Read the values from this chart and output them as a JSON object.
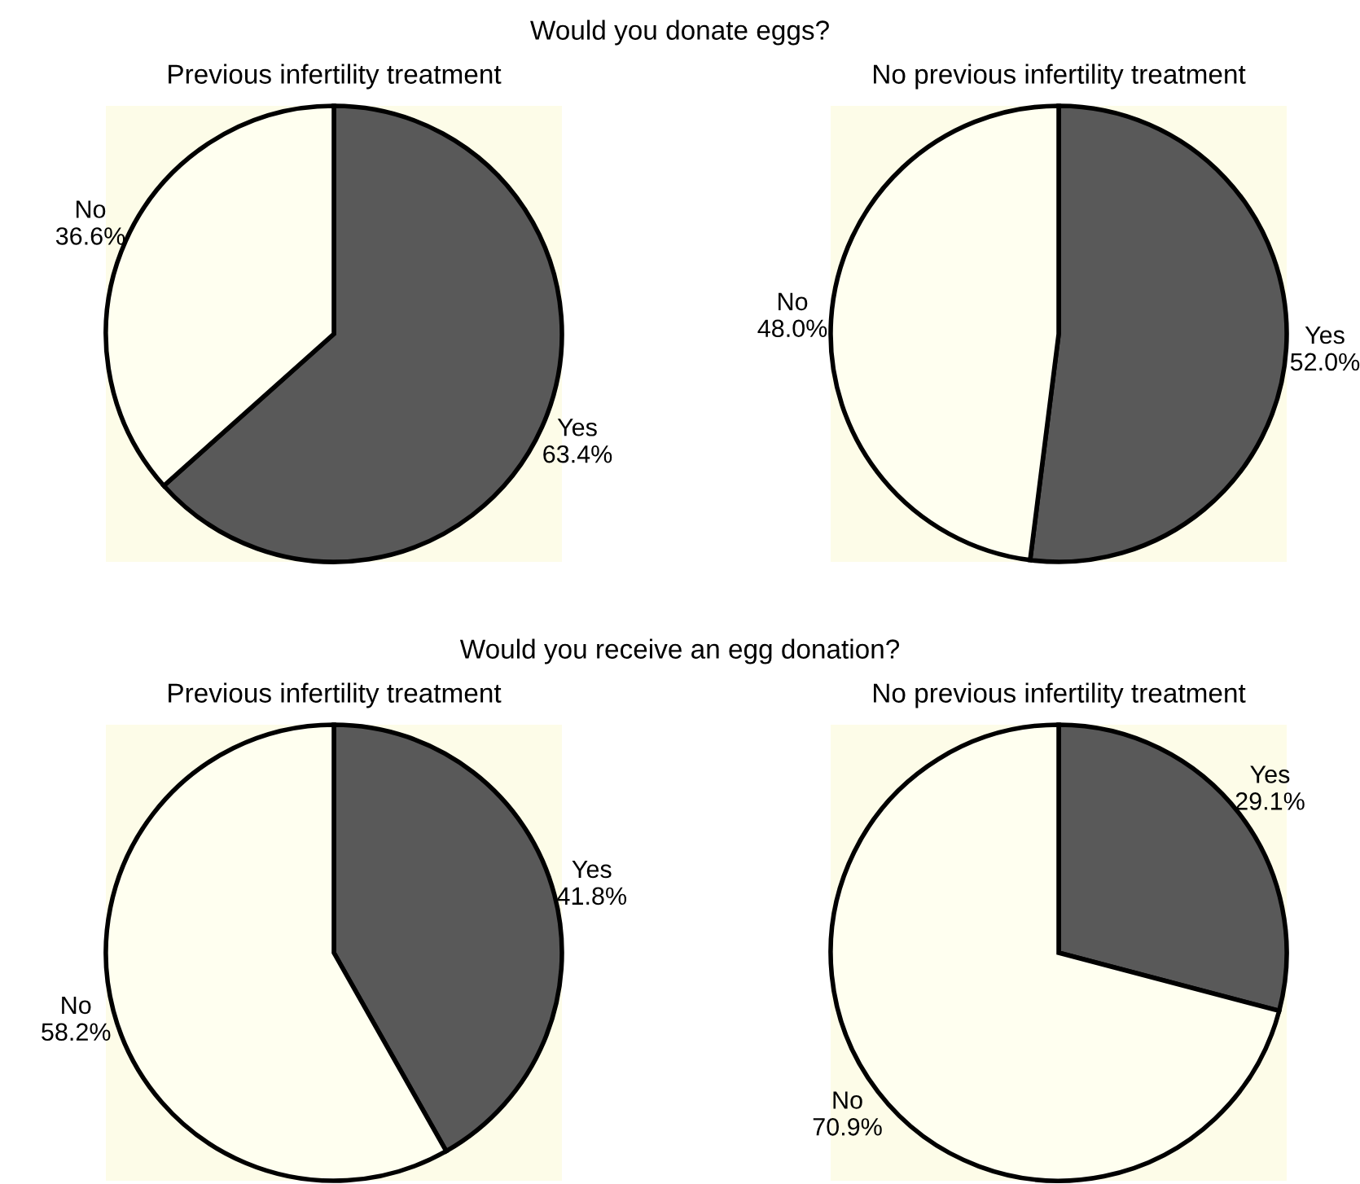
{
  "chart_data": [
    {
      "type": "pie",
      "title": "Would you donate eggs?",
      "subtitle": "Previous infertility treatment",
      "categories": [
        "Yes",
        "No"
      ],
      "values": [
        63.4,
        36.6
      ],
      "value_labels": [
        "63.4%",
        "36.6%"
      ],
      "colors": [
        "#595959",
        "#fffff0"
      ]
    },
    {
      "type": "pie",
      "subtitle": "No previous infertility treatment",
      "categories": [
        "Yes",
        "No"
      ],
      "values": [
        52.0,
        48.0
      ],
      "value_labels": [
        "52.0%",
        "48.0%"
      ],
      "colors": [
        "#595959",
        "#fffff0"
      ]
    },
    {
      "type": "pie",
      "title": "Would you receive an egg donation?",
      "subtitle": "Previous infertility treatment",
      "categories": [
        "Yes",
        "No"
      ],
      "values": [
        41.8,
        58.2
      ],
      "value_labels": [
        "41.8%",
        "58.2%"
      ],
      "colors": [
        "#595959",
        "#fffff0"
      ]
    },
    {
      "type": "pie",
      "subtitle": "No previous infertility treatment",
      "categories": [
        "Yes",
        "No"
      ],
      "values": [
        29.1,
        70.9
      ],
      "value_labels": [
        "29.1%",
        "70.9%"
      ],
      "colors": [
        "#595959",
        "#fffff0"
      ]
    }
  ]
}
